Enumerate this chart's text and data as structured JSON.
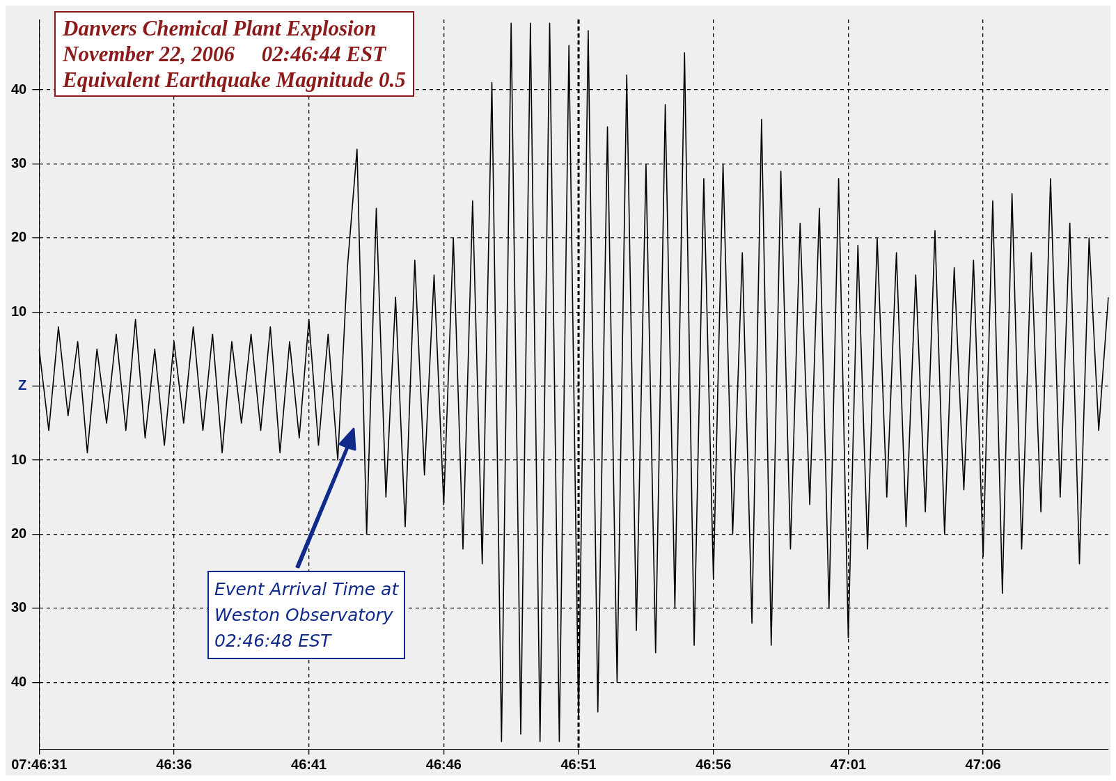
{
  "chart_data": {
    "type": "line",
    "title": "Danvers Chemical Plant Explosion",
    "subtitle": "November 22, 2006     02:46:44 EST",
    "annotations": [
      "Equivalent Earthquake Magnitude 0.5",
      "Event Arrival Time at\nWeston Observatory\n02:46:48 EST"
    ],
    "categories": [
      "07:46:31",
      null,
      null,
      null,
      null,
      null,
      null,
      null,
      null,
      null,
      null,
      null,
      null,
      null,
      "46:36",
      null,
      null,
      null,
      null,
      null,
      null,
      null,
      null,
      null,
      null,
      null,
      null,
      null,
      "46:41",
      null,
      null,
      null,
      null,
      null,
      null,
      null,
      null,
      null,
      null,
      null,
      null,
      null,
      "46:46",
      null,
      null,
      null,
      null,
      null,
      null,
      null,
      null,
      null,
      null,
      null,
      null,
      null,
      "46:51",
      null,
      null,
      null,
      null,
      null,
      null,
      null,
      null,
      null,
      null,
      null,
      null,
      null,
      "46:56",
      null,
      null,
      null,
      null,
      null,
      null,
      null,
      null,
      null,
      null,
      null,
      null,
      null,
      "47:01",
      null,
      null,
      null,
      null,
      null,
      null,
      null,
      null,
      null,
      null,
      null,
      null,
      null,
      "47:06",
      null,
      null,
      null,
      null,
      null,
      null,
      null,
      null,
      null,
      null,
      null,
      null,
      null
    ],
    "series": [
      {
        "color": "#000000",
        "values": [
          5,
          -6,
          8,
          -4,
          6,
          -9,
          5,
          -5,
          7,
          -6,
          9,
          -7,
          5,
          -8,
          6,
          -5,
          8,
          -6,
          7,
          -9,
          6,
          -5,
          7,
          -6,
          8,
          -9,
          6,
          -7,
          9,
          -8,
          7,
          -10,
          16,
          32,
          -20,
          24,
          -15,
          12,
          -19,
          17,
          -12,
          15,
          -16,
          20,
          -22,
          25,
          -24,
          41,
          -48,
          49,
          -47,
          49,
          -48,
          49,
          -48,
          46,
          -45,
          48,
          -44,
          35,
          -40,
          42,
          -33,
          30,
          -36,
          38,
          -30,
          45,
          -35,
          28,
          -26,
          30,
          -20,
          18,
          -32,
          36,
          -35,
          29,
          -22,
          22,
          -16,
          24,
          -30,
          28,
          -34,
          19,
          -22,
          20,
          -15,
          18,
          -19,
          15,
          -17,
          21,
          -20,
          16,
          -14,
          17,
          -23,
          25,
          -28,
          26,
          -22,
          18,
          -17,
          28,
          -15,
          22,
          -24,
          20,
          -6,
          12
        ]
      }
    ],
    "ylim": [
      -49,
      49.5
    ],
    "yticks": [
      {
        "value": -40,
        "label": "40"
      },
      {
        "value": -30,
        "label": "30"
      },
      {
        "value": -20,
        "label": "20"
      },
      {
        "value": -10,
        "label": "10"
      },
      {
        "value": 0,
        "label": "Z"
      },
      10,
      20,
      30,
      40
    ],
    "grid": true,
    "line_style": "solid",
    "ref_lines": [
      {
        "axis": "x",
        "value": "46:51",
        "color": "#000000",
        "line_style": "dashed"
      }
    ]
  }
}
